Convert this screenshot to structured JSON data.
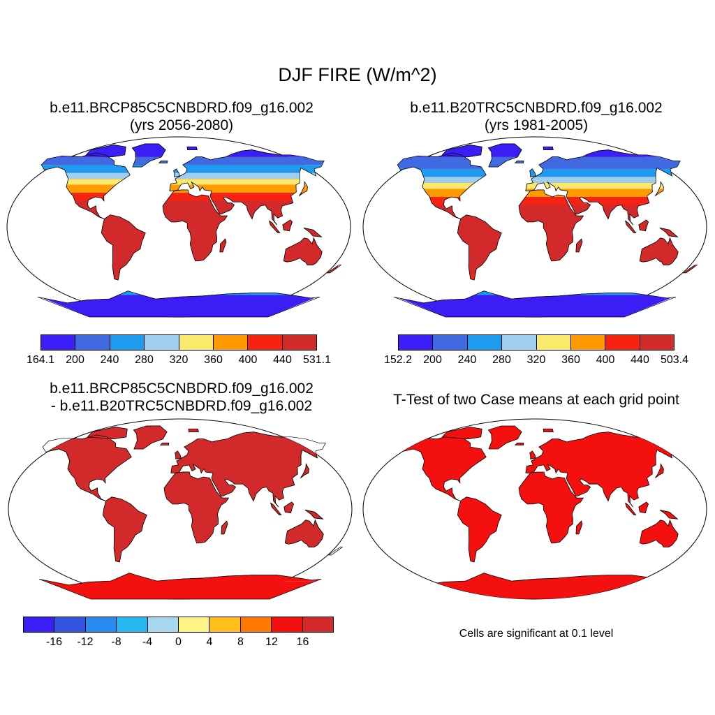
{
  "figure": {
    "title": "DJF FIRE (W/m^2)"
  },
  "panels": {
    "case_future": {
      "title_line1": "b.e11.BRCP85C5CNBDRD.f09_g16.002",
      "title_line2": "(yrs 2056-2080)",
      "colorbar": {
        "labels": [
          "164.1",
          "200",
          "240",
          "280",
          "320",
          "360",
          "400",
          "440",
          "531.1"
        ],
        "colors": [
          "#3b1ef5",
          "#4169e1",
          "#1e9bf0",
          "#9ecfee",
          "#fbe96b",
          "#ff9a00",
          "#f52412",
          "#d22a2a"
        ]
      }
    },
    "case_historical": {
      "title_line1": "b.e11.B20TRC5CNBDRD.f09_g16.002",
      "title_line2": "(yrs 1981-2005)",
      "colorbar": {
        "labels": [
          "152.2",
          "200",
          "240",
          "280",
          "320",
          "360",
          "400",
          "440",
          "503.4"
        ],
        "colors": [
          "#3b1ef5",
          "#4169e1",
          "#1e9bf0",
          "#9ecfee",
          "#fbe96b",
          "#ff9a00",
          "#f52412",
          "#d22a2a"
        ]
      }
    },
    "difference": {
      "title_line1": "b.e11.BRCP85C5CNBDRD.f09_g16.002",
      "title_line2": "- b.e11.B20TRC5CNBDRD.f09_g16.002",
      "colorbar": {
        "labels": [
          "-16",
          "-12",
          "-8",
          "-4",
          "0",
          "4",
          "8",
          "12",
          "16"
        ],
        "colors": [
          "#3b1ef5",
          "#3355e0",
          "#2a8cf0",
          "#25b8f2",
          "#a8d8ef",
          "#fff385",
          "#ffbf1a",
          "#ff7a00",
          "#f51010",
          "#d22a2a"
        ]
      }
    },
    "ttest": {
      "title_line1": "T-Test of two Case means at each grid point",
      "note": "Cells are significant at 0.1 level"
    }
  },
  "map_colors": {
    "ocean": "#ffffff",
    "coast": "#000000"
  }
}
